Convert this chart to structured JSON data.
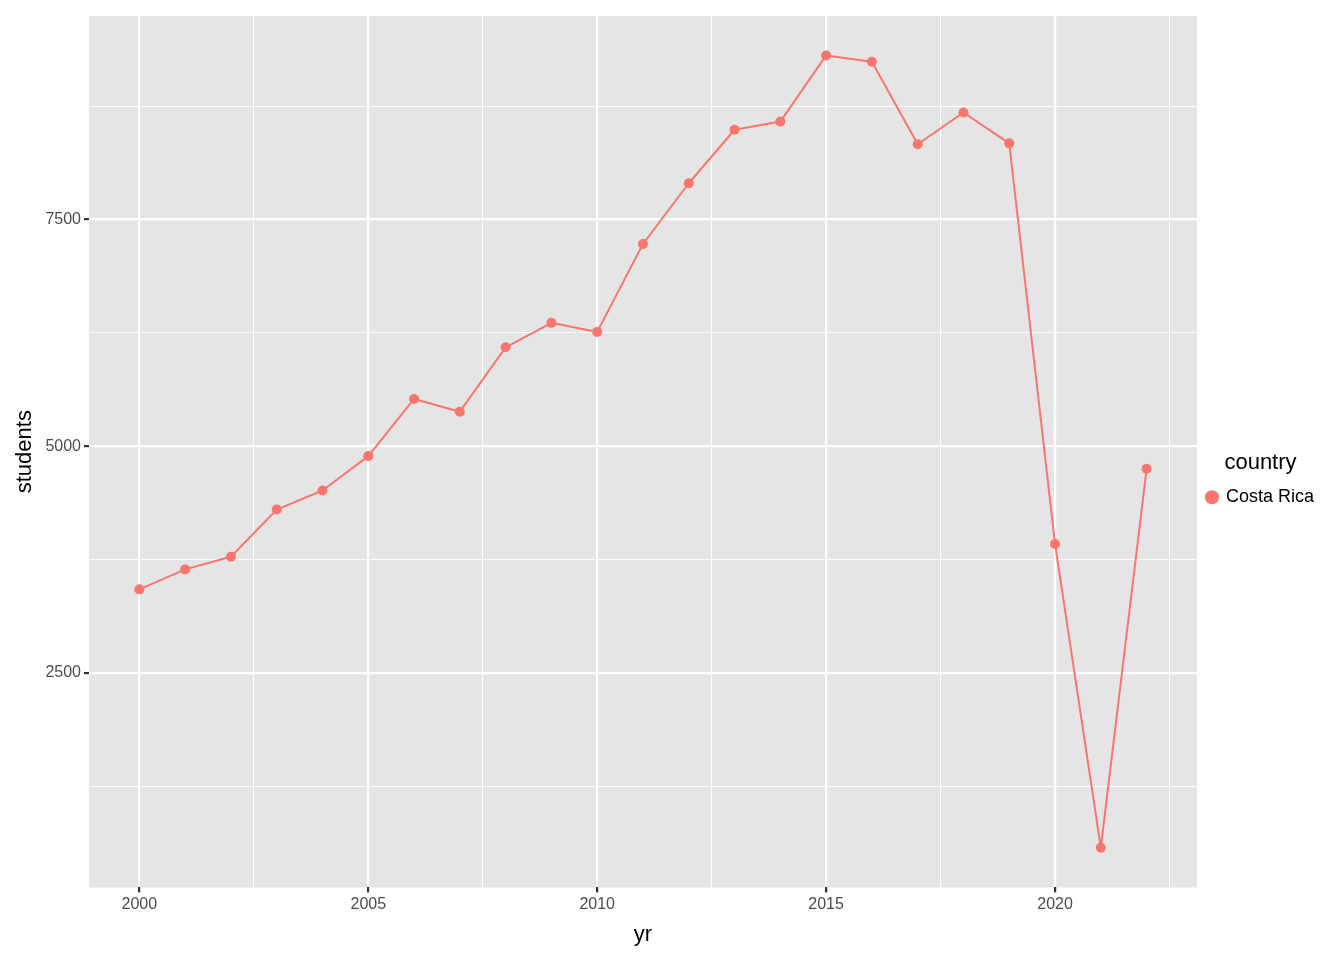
{
  "chart_data": {
    "type": "line",
    "xlabel": "yr",
    "ylabel": "students",
    "legend_title": "country",
    "legend": "right",
    "grid": true,
    "marker": "circle",
    "line_style": "solid",
    "x": [
      2000,
      2001,
      2002,
      2003,
      2004,
      2005,
      2006,
      2007,
      2008,
      2009,
      2010,
      2011,
      2012,
      2013,
      2014,
      2015,
      2016,
      2017,
      2018,
      2019,
      2020,
      2021,
      2022
    ],
    "series": [
      {
        "name": "Costa Rica",
        "color": "#f8766d",
        "values": [
          3420,
          3640,
          3780,
          4300,
          4510,
          4890,
          5520,
          5380,
          6090,
          6360,
          6260,
          7230,
          7900,
          8490,
          8580,
          9310,
          9240,
          8330,
          8680,
          8340,
          3920,
          570,
          4750
        ]
      }
    ],
    "xlim": [
      1998.9,
      2023.1
    ],
    "xticks": [
      2000,
      {
        "value": 2002.5,
        "label": null
      },
      2005,
      {
        "value": 2007.5,
        "label": null
      },
      2010,
      {
        "value": 2012.5,
        "label": null
      },
      2015,
      {
        "value": 2017.5,
        "label": null
      },
      2020,
      {
        "value": 2022.5,
        "label": null
      }
    ],
    "ylim": [
      132,
      9745
    ],
    "yticks": [
      {
        "value": 1250,
        "label": null
      },
      2500,
      {
        "value": 3750,
        "label": null
      },
      5000,
      {
        "value": 6250,
        "label": null
      },
      7500,
      {
        "value": 8750,
        "label": null
      }
    ]
  }
}
